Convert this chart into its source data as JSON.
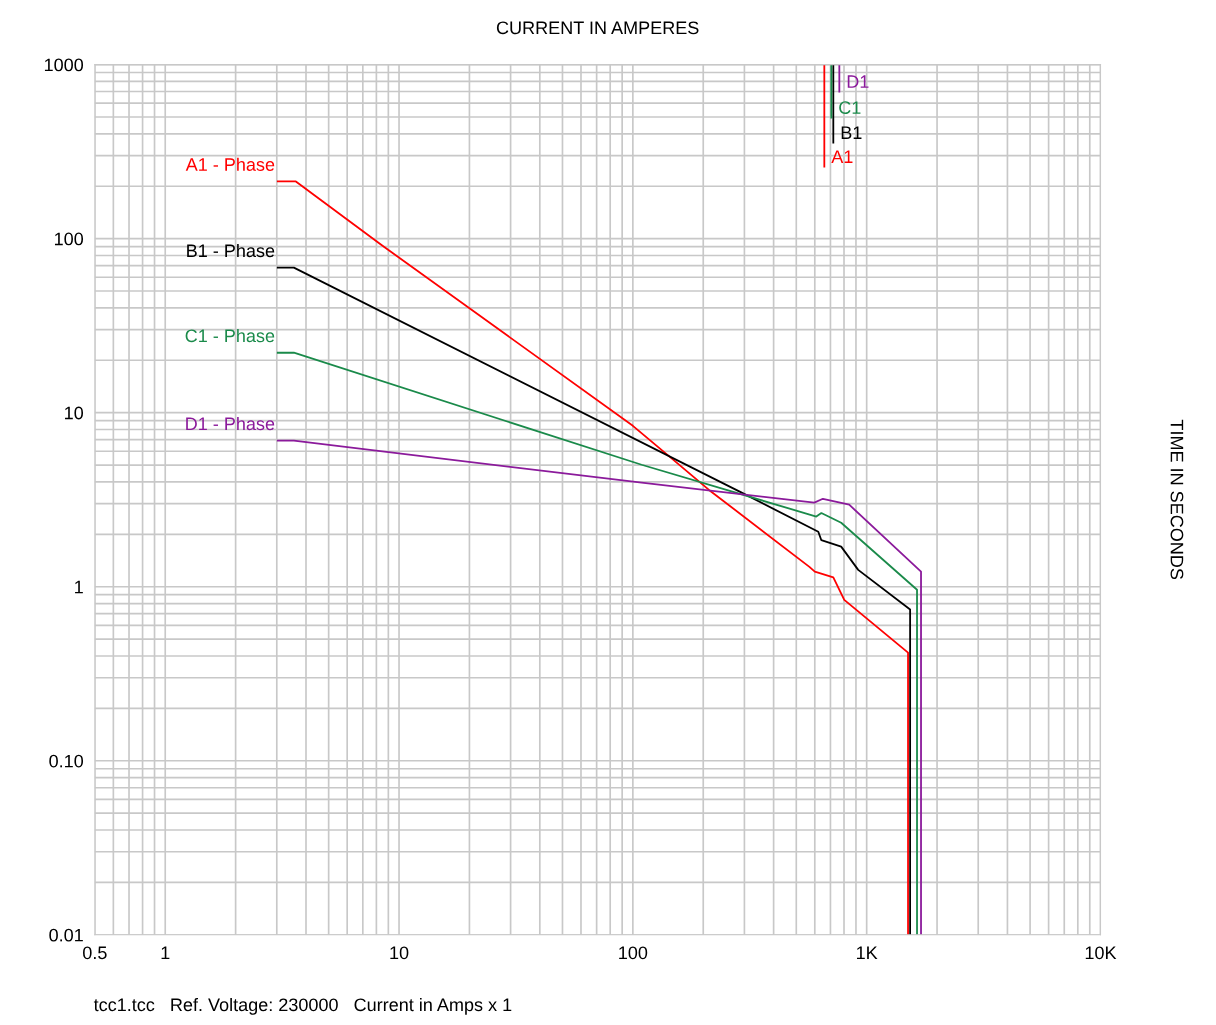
{
  "chart_data": {
    "type": "line",
    "xlabel": "CURRENT IN AMPERES",
    "ylabel": "TIME IN SECONDS",
    "log": "xy",
    "grid": true,
    "legend": false,
    "marker": "none",
    "line_style": "solid",
    "xlim": [
      0.5,
      10000
    ],
    "xticks": [
      0.5,
      1,
      10,
      100,
      {
        "value": 1000,
        "label": "1K"
      },
      {
        "value": 10000,
        "label": "10K"
      }
    ],
    "ylim": [
      0.01,
      1000
    ],
    "yticks": [
      0.01,
      {
        "value": 0.1,
        "label": "0.10"
      },
      1,
      10,
      100,
      1000
    ],
    "series": [
      {
        "name": "A1 - Phase",
        "color": "#ff0000",
        "x": [
          3.03,
          3.62,
          8.5,
          100,
          141,
          211,
          569,
          600,
          720,
          802,
          1503,
          1503
        ],
        "values": [
          213,
          213,
          91,
          8.4,
          5.7,
          3.61,
          1.3,
          1.22,
          1.13,
          0.84,
          0.418,
          0.01
        ]
      },
      {
        "name": "B1 - Phase",
        "color": "#000000",
        "x": [
          3.03,
          3.55,
          292,
          621,
          640,
          778,
          920,
          1534,
          1534
        ],
        "values": [
          68.1,
          68.1,
          3.47,
          2.07,
          1.85,
          1.7,
          1.25,
          0.74,
          0.01
        ]
      },
      {
        "name": "C1 - Phase",
        "color": "#1a8a4a",
        "x": [
          3.03,
          3.55,
          109,
          609,
          640,
          778,
          1642,
          1642
        ],
        "values": [
          22.1,
          22.1,
          5.02,
          2.53,
          2.65,
          2.33,
          0.96,
          0.01
        ]
      },
      {
        "name": "D1 - Phase",
        "color": "#8b1a9b",
        "x": [
          3.03,
          3.55,
          109,
          597,
          650,
          842,
          1708,
          1708
        ],
        "values": [
          6.9,
          6.9,
          3.96,
          3.04,
          3.2,
          2.96,
          1.22,
          0.01
        ]
      },
      {
        "name": "A1",
        "color": "#ff0000",
        "x": [
          659,
          659
        ],
        "values": [
          1000,
          259
        ]
      },
      {
        "name": "B1",
        "color": "#000000",
        "x": [
          720,
          720
        ],
        "values": [
          1000,
          356
        ]
      },
      {
        "name": "C1",
        "color": "#1a8a4a",
        "x": [
          706,
          706
        ],
        "values": [
          1000,
          496
        ]
      },
      {
        "name": "D1",
        "color": "#8b1a9b",
        "x": [
          764,
          764
        ],
        "values": [
          1000,
          700
        ]
      }
    ],
    "annotations": [
      "tcc1.tcc   Ref. Voltage: 230000   Current in Amps x 1"
    ]
  }
}
